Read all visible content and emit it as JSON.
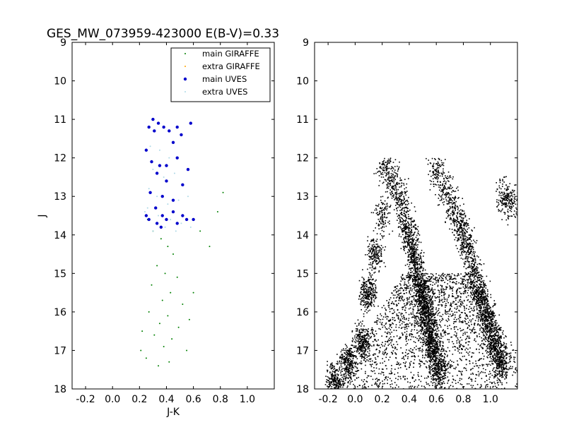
{
  "chart_data": [
    {
      "type": "scatter",
      "title": "GES_MW_073959-423000 E(B-V)=0.33",
      "xlabel": "J-K",
      "ylabel": "J",
      "xlim": [
        -0.3,
        1.2
      ],
      "ylim": [
        18,
        9
      ],
      "x_ticks": [
        "-0.2",
        "0.0",
        "0.2",
        "0.4",
        "0.6",
        "0.8",
        "1.0"
      ],
      "y_ticks": [
        "9",
        "10",
        "11",
        "12",
        "13",
        "14",
        "15",
        "16",
        "17",
        "18"
      ],
      "grid": false,
      "legend_position": "top-right",
      "series": [
        {
          "name": "main GIRAFFE",
          "color": "#008000",
          "marker": "point",
          "points": [
            [
              0.26,
              13.6
            ],
            [
              0.3,
              13.9
            ],
            [
              0.36,
              14.1
            ],
            [
              0.41,
              14.3
            ],
            [
              0.45,
              14.5
            ],
            [
              0.33,
              14.8
            ],
            [
              0.39,
              15.0
            ],
            [
              0.48,
              15.1
            ],
            [
              0.29,
              15.3
            ],
            [
              0.43,
              15.5
            ],
            [
              0.37,
              15.7
            ],
            [
              0.52,
              15.8
            ],
            [
              0.27,
              16.0
            ],
            [
              0.41,
              16.1
            ],
            [
              0.35,
              16.3
            ],
            [
              0.49,
              16.4
            ],
            [
              0.31,
              16.6
            ],
            [
              0.44,
              16.7
            ],
            [
              0.38,
              16.9
            ],
            [
              0.55,
              17.0
            ],
            [
              0.25,
              17.2
            ],
            [
              0.42,
              17.3
            ],
            [
              0.34,
              17.4
            ],
            [
              0.6,
              15.5
            ],
            [
              0.22,
              16.5
            ],
            [
              0.65,
              13.9
            ],
            [
              0.72,
              14.3
            ],
            [
              0.78,
              13.4
            ],
            [
              0.82,
              12.9
            ],
            [
              0.57,
              16.2
            ],
            [
              0.21,
              17.0
            ]
          ]
        },
        {
          "name": "extra GIRAFFE",
          "color": "#ffa500",
          "marker": "point",
          "points": []
        },
        {
          "name": "main UVES",
          "color": "#0000cc",
          "marker": "circle",
          "points": [
            [
              0.3,
              11.0
            ],
            [
              0.34,
              11.1
            ],
            [
              0.38,
              11.2
            ],
            [
              0.27,
              11.2
            ],
            [
              0.42,
              11.3
            ],
            [
              0.31,
              11.3
            ],
            [
              0.48,
              11.2
            ],
            [
              0.58,
              11.1
            ],
            [
              0.45,
              11.6
            ],
            [
              0.51,
              11.4
            ],
            [
              0.25,
              11.8
            ],
            [
              0.29,
              12.1
            ],
            [
              0.35,
              12.2
            ],
            [
              0.4,
              12.2
            ],
            [
              0.33,
              12.4
            ],
            [
              0.48,
              12.0
            ],
            [
              0.56,
              12.3
            ],
            [
              0.4,
              12.6
            ],
            [
              0.52,
              12.7
            ],
            [
              0.28,
              12.9
            ],
            [
              0.37,
              13.0
            ],
            [
              0.45,
              13.1
            ],
            [
              0.32,
              13.3
            ],
            [
              0.25,
              13.5
            ],
            [
              0.37,
              13.5
            ],
            [
              0.45,
              13.4
            ],
            [
              0.52,
              13.5
            ],
            [
              0.27,
              13.6
            ],
            [
              0.33,
              13.7
            ],
            [
              0.4,
              13.6
            ],
            [
              0.48,
              13.7
            ],
            [
              0.55,
              13.6
            ],
            [
              0.36,
              13.8
            ],
            [
              0.6,
              13.6
            ]
          ]
        },
        {
          "name": "extra UVES",
          "color": "#add8e6",
          "marker": "point",
          "points": [
            [
              0.28,
              11.7
            ],
            [
              0.35,
              11.8
            ],
            [
              0.42,
              12.0
            ],
            [
              0.3,
              12.3
            ],
            [
              0.38,
              12.5
            ],
            [
              0.46,
              12.4
            ],
            [
              0.27,
              12.8
            ],
            [
              0.33,
              13.0
            ],
            [
              0.41,
              13.2
            ],
            [
              0.49,
              13.1
            ],
            [
              0.56,
              13.0
            ],
            [
              0.26,
              13.3
            ],
            [
              0.34,
              13.5
            ],
            [
              0.43,
              13.6
            ],
            [
              0.51,
              13.7
            ],
            [
              0.3,
              13.9
            ],
            [
              0.39,
              13.8
            ],
            [
              0.47,
              13.9
            ],
            [
              0.58,
              13.8
            ],
            [
              0.24,
              13.4
            ]
          ]
        }
      ]
    },
    {
      "type": "scatter",
      "xlim": [
        -0.3,
        1.2
      ],
      "ylim": [
        18,
        9
      ],
      "x_ticks": [
        "-0.2",
        "0.0",
        "0.2",
        "0.4",
        "0.6",
        "0.8",
        "1.0"
      ],
      "y_ticks": [
        "9",
        "10",
        "11",
        "12",
        "13",
        "14",
        "15",
        "16",
        "17",
        "18"
      ],
      "grid": false,
      "series": [
        {
          "color": "#000000",
          "marker": "point",
          "points": [
            [
              0.22,
              12.2
            ],
            [
              0.28,
              12.6
            ],
            [
              0.33,
              13.0
            ],
            [
              0.37,
              13.5
            ],
            [
              0.4,
              14.0
            ],
            [
              0.43,
              14.5
            ],
            [
              0.46,
              15.0
            ],
            [
              0.49,
              15.5
            ],
            [
              0.52,
              16.0
            ],
            [
              0.55,
              16.5
            ],
            [
              0.58,
              17.0
            ],
            [
              0.62,
              17.5
            ],
            [
              0.6,
              12.3
            ],
            [
              0.66,
              12.8
            ],
            [
              0.72,
              13.3
            ],
            [
              0.78,
              13.8
            ],
            [
              0.83,
              14.3
            ],
            [
              0.88,
              15.0
            ],
            [
              0.93,
              15.6
            ],
            [
              0.98,
              16.2
            ],
            [
              1.03,
              16.8
            ],
            [
              1.08,
              17.3
            ],
            [
              -0.15,
              17.8
            ],
            [
              -0.05,
              17.3
            ],
            [
              0.05,
              16.8
            ],
            [
              0.1,
              15.5
            ],
            [
              0.15,
              14.5
            ],
            [
              0.2,
              13.5
            ],
            [
              1.1,
              13.0
            ],
            [
              1.15,
              13.2
            ]
          ]
        }
      ]
    }
  ]
}
